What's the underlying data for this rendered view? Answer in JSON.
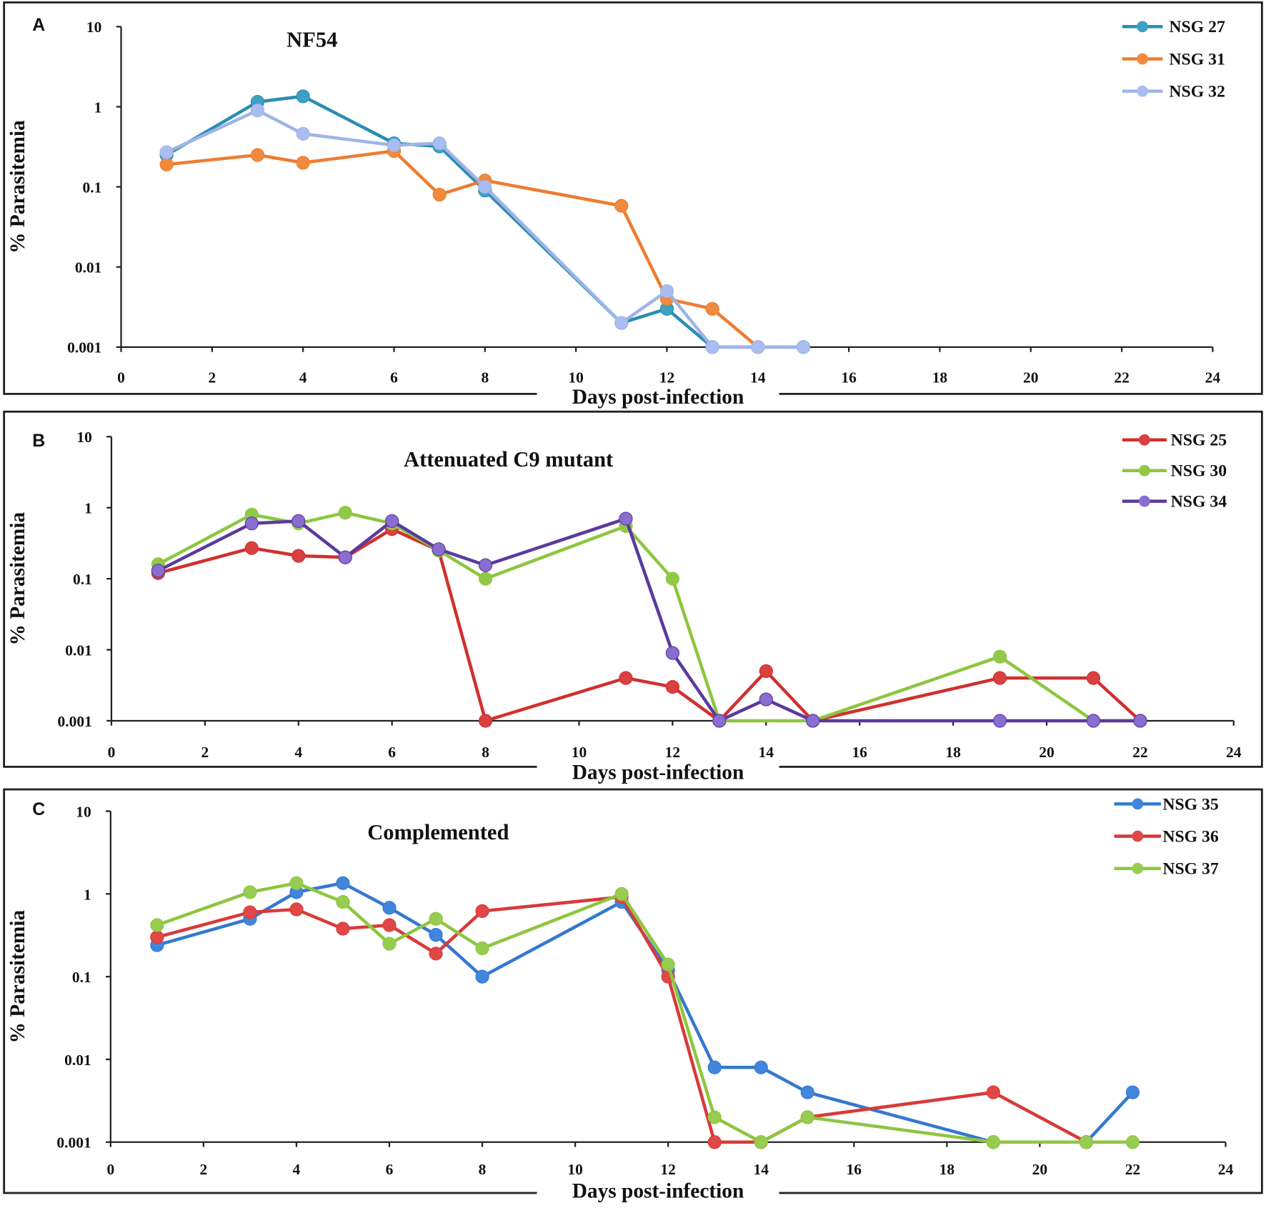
{
  "chart_data": [
    {
      "type": "line",
      "panel": "A",
      "title": "NF54",
      "xlabel": "Days post-infection",
      "ylabel": "% Parasitemia",
      "xlim": [
        0,
        24
      ],
      "ylim": [
        0.001,
        10
      ],
      "yscale": "log",
      "xticks": [
        "0",
        "2",
        "4",
        "6",
        "8",
        "10",
        "12",
        "14",
        "16",
        "18",
        "20",
        "22",
        "24"
      ],
      "yticks": [
        "0.001",
        "0.01",
        "0.1",
        "1",
        "10"
      ],
      "legend_position": "top-right",
      "series": [
        {
          "name": "NSG 27",
          "color": "#2a8db2",
          "marker": "#3fa0c4",
          "x": [
            1,
            3,
            4,
            6,
            7,
            8,
            11,
            12,
            13,
            14,
            15
          ],
          "values": [
            0.25,
            1.15,
            1.35,
            0.35,
            0.32,
            0.09,
            0.002,
            0.003,
            0.001,
            0.001,
            0.001
          ]
        },
        {
          "name": "NSG 31",
          "color": "#ed7d31",
          "marker": "#f08a3e",
          "x": [
            1,
            3,
            4,
            6,
            7,
            8,
            11,
            12,
            13,
            14
          ],
          "values": [
            0.19,
            0.25,
            0.2,
            0.28,
            0.08,
            0.12,
            0.058,
            0.004,
            0.003,
            0.001
          ]
        },
        {
          "name": "NSG 32",
          "color": "#9fb4e6",
          "marker": "#a9bdf0",
          "x": [
            1,
            3,
            4,
            6,
            7,
            8,
            11,
            12,
            13,
            14,
            15
          ],
          "values": [
            0.27,
            0.9,
            0.46,
            0.33,
            0.35,
            0.1,
            0.002,
            0.005,
            0.001,
            0.001,
            0.001
          ]
        }
      ]
    },
    {
      "type": "line",
      "panel": "B",
      "title": "Attenuated C9 mutant",
      "xlabel": "Days post-infection",
      "ylabel": "% Parasitemia",
      "xlim": [
        0,
        24
      ],
      "ylim": [
        0.001,
        10
      ],
      "yscale": "log",
      "xticks": [
        "0",
        "2",
        "4",
        "6",
        "8",
        "10",
        "12",
        "14",
        "16",
        "18",
        "20",
        "22",
        "24"
      ],
      "yticks": [
        "0.001",
        "0.01",
        "0.1",
        "1",
        "10"
      ],
      "legend_position": "top-right",
      "series": [
        {
          "name": "NSG 25",
          "color": "#d0302f",
          "marker": "#d94040",
          "x": [
            1,
            3,
            4,
            5,
            6,
            7,
            8,
            11,
            12,
            13,
            14,
            15,
            19,
            21,
            22
          ],
          "values": [
            0.12,
            0.27,
            0.21,
            0.2,
            0.5,
            0.25,
            0.001,
            0.004,
            0.003,
            0.001,
            0.005,
            0.001,
            0.004,
            0.004,
            0.001
          ]
        },
        {
          "name": "NSG 30",
          "color": "#8dc63f",
          "marker": "#92c84a",
          "x": [
            1,
            3,
            4,
            5,
            6,
            7,
            8,
            11,
            12,
            13,
            15,
            19,
            21,
            22
          ],
          "values": [
            0.16,
            0.8,
            0.6,
            0.85,
            0.6,
            0.25,
            0.1,
            0.55,
            0.1,
            0.001,
            0.001,
            0.008,
            0.001,
            0.001
          ]
        },
        {
          "name": "NSG 34",
          "color": "#5a3a9e",
          "marker": "#8a6dd0",
          "x": [
            1,
            3,
            4,
            5,
            6,
            7,
            8,
            11,
            12,
            13,
            14,
            15,
            19,
            21,
            22
          ],
          "values": [
            0.13,
            0.6,
            0.65,
            0.2,
            0.65,
            0.26,
            0.155,
            0.7,
            0.009,
            0.001,
            0.002,
            0.001,
            0.001,
            0.001,
            0.001
          ]
        }
      ]
    },
    {
      "type": "line",
      "panel": "C",
      "title": "Complemented",
      "xlabel": "Days post-infection",
      "ylabel": "% Parasitemia",
      "xlim": [
        0,
        24
      ],
      "ylim": [
        0.001,
        10
      ],
      "yscale": "log",
      "xticks": [
        "0",
        "2",
        "4",
        "6",
        "8",
        "10",
        "12",
        "14",
        "16",
        "18",
        "20",
        "22",
        "24"
      ],
      "yticks": [
        "0.001",
        "0.01",
        "0.1",
        "1",
        "10"
      ],
      "legend_position": "top-right",
      "series": [
        {
          "name": "NSG 35",
          "color": "#3478d0",
          "marker": "#4186dc",
          "x": [
            1,
            3,
            4,
            5,
            6,
            7,
            8,
            11,
            12,
            13,
            14,
            15,
            19,
            21,
            22
          ],
          "values": [
            0.24,
            0.5,
            1.05,
            1.35,
            0.68,
            0.32,
            0.1,
            0.8,
            0.12,
            0.008,
            0.008,
            0.004,
            0.001,
            0.001,
            0.004
          ]
        },
        {
          "name": "NSG 36",
          "color": "#d83a3a",
          "marker": "#e04848",
          "x": [
            1,
            3,
            4,
            5,
            6,
            7,
            8,
            11,
            12,
            13,
            14,
            15,
            19,
            21
          ],
          "values": [
            0.3,
            0.6,
            0.65,
            0.38,
            0.42,
            0.19,
            0.62,
            0.92,
            0.1,
            0.001,
            0.001,
            0.002,
            0.004,
            0.001
          ]
        },
        {
          "name": "NSG 37",
          "color": "#8dc63f",
          "marker": "#98cc50",
          "x": [
            1,
            3,
            4,
            5,
            6,
            7,
            8,
            11,
            12,
            13,
            14,
            15,
            19,
            21,
            22
          ],
          "values": [
            0.42,
            1.05,
            1.35,
            0.8,
            0.25,
            0.5,
            0.22,
            1.0,
            0.14,
            0.002,
            0.001,
            0.002,
            0.001,
            0.001,
            0.001
          ]
        }
      ]
    }
  ]
}
